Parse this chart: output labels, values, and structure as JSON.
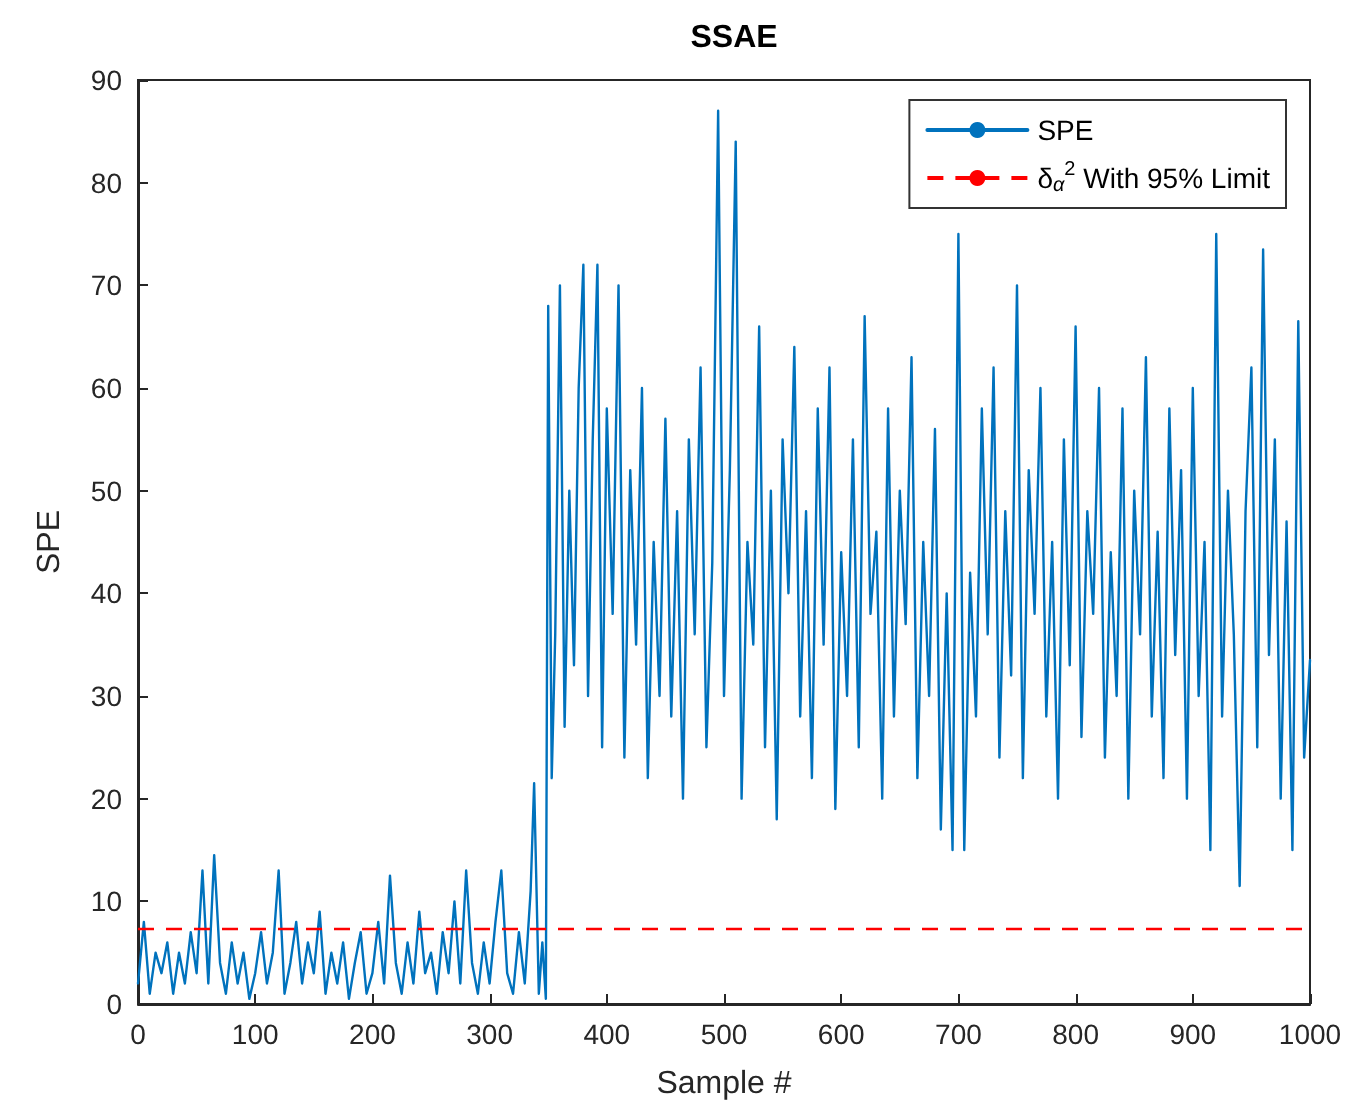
{
  "chart_data": {
    "type": "line",
    "title": "SSAE",
    "xlabel": "Sample #",
    "ylabel": "SPE",
    "xlim": [
      0,
      1000
    ],
    "xticks": [
      0,
      100,
      200,
      300,
      400,
      500,
      600,
      700,
      800,
      900,
      1000
    ],
    "ylim": [
      0,
      90
    ],
    "yticks": [
      0,
      10,
      20,
      30,
      40,
      50,
      60,
      70,
      80,
      90
    ],
    "grid": false,
    "legend": "top right",
    "marker": "none",
    "line_style": "solid",
    "series": [
      {
        "name": "SPE",
        "color": "#0072bd",
        "x": [
          0,
          5,
          10,
          15,
          20,
          25,
          30,
          35,
          40,
          45,
          50,
          55,
          60,
          65,
          70,
          75,
          80,
          85,
          90,
          95,
          100,
          105,
          110,
          115,
          120,
          125,
          130,
          135,
          140,
          145,
          150,
          155,
          160,
          165,
          170,
          175,
          180,
          185,
          190,
          195,
          200,
          205,
          210,
          215,
          220,
          225,
          230,
          235,
          240,
          245,
          250,
          255,
          260,
          265,
          270,
          275,
          280,
          285,
          290,
          295,
          300,
          305,
          310,
          315,
          320,
          325,
          330,
          335,
          338,
          342,
          345,
          348,
          350,
          353,
          356,
          360,
          364,
          368,
          372,
          376,
          380,
          384,
          388,
          392,
          396,
          400,
          405,
          410,
          415,
          420,
          425,
          430,
          435,
          440,
          445,
          450,
          455,
          460,
          465,
          470,
          475,
          480,
          485,
          490,
          495,
          500,
          505,
          510,
          515,
          520,
          525,
          530,
          535,
          540,
          545,
          550,
          555,
          560,
          565,
          570,
          575,
          580,
          585,
          590,
          595,
          600,
          605,
          610,
          615,
          620,
          625,
          630,
          635,
          640,
          645,
          650,
          655,
          660,
          665,
          670,
          675,
          680,
          685,
          690,
          695,
          700,
          705,
          710,
          715,
          720,
          725,
          730,
          735,
          740,
          745,
          750,
          755,
          760,
          765,
          770,
          775,
          780,
          785,
          790,
          795,
          800,
          805,
          810,
          815,
          820,
          825,
          830,
          835,
          840,
          845,
          850,
          855,
          860,
          865,
          870,
          875,
          880,
          885,
          890,
          895,
          900,
          905,
          910,
          915,
          920,
          925,
          930,
          935,
          940,
          945,
          950,
          955,
          960,
          965,
          970,
          975,
          980,
          985,
          990,
          995,
          1000
        ],
        "values": [
          2,
          8,
          1,
          5,
          3,
          6,
          1,
          5,
          2,
          7,
          3,
          13,
          2,
          14.5,
          4,
          1,
          6,
          2,
          5,
          0.5,
          3,
          7,
          2,
          5,
          13,
          1,
          4,
          8,
          2,
          6,
          3,
          9,
          1,
          5,
          2,
          6,
          0.5,
          4,
          7,
          1,
          3,
          8,
          2,
          12.5,
          4,
          1,
          6,
          2,
          9,
          3,
          5,
          1,
          7,
          3,
          10,
          2,
          13,
          4,
          1,
          6,
          2,
          8,
          13,
          3,
          1,
          7,
          2,
          11,
          21.5,
          1,
          6,
          0.5,
          68,
          22,
          36,
          70,
          27,
          50,
          33,
          60,
          72,
          30,
          55,
          72,
          25,
          58,
          38,
          70,
          24,
          52,
          35,
          60,
          22,
          45,
          30,
          57,
          28,
          48,
          20,
          55,
          36,
          62,
          25,
          43,
          87,
          30,
          52,
          84,
          20,
          45,
          35,
          66,
          25,
          50,
          18,
          55,
          40,
          64,
          28,
          48,
          22,
          58,
          35,
          62,
          19,
          44,
          30,
          55,
          25,
          67,
          38,
          46,
          20,
          58,
          28,
          50,
          37,
          63,
          22,
          45,
          30,
          56,
          17,
          40,
          15,
          75,
          15,
          42,
          28,
          58,
          36,
          62,
          24,
          48,
          32,
          70,
          22,
          52,
          38,
          60,
          28,
          45,
          20,
          55,
          33,
          66,
          26,
          48,
          38,
          60,
          24,
          44,
          30,
          58,
          20,
          50,
          36,
          63,
          28,
          46,
          22,
          58,
          34,
          52,
          20,
          60,
          30,
          45,
          15,
          75,
          28,
          50,
          36,
          11.5,
          48,
          62,
          25,
          73.5,
          34,
          55,
          20,
          47,
          15,
          66.5,
          24,
          33.5
        ]
      }
    ],
    "ref_lines": [
      {
        "axis": "y",
        "value": 7.4,
        "label": "δ$_{α}$$^{2}$ With 95% Limit",
        "color": "#ff0000",
        "line_style": "dashed"
      }
    ]
  }
}
